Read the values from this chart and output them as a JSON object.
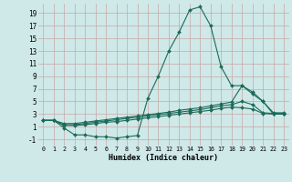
{
  "xlabel": "Humidex (Indice chaleur)",
  "background_color": "#cfe8e8",
  "grid_color": "#c8a8a8",
  "line_color": "#1a6b5a",
  "xlim": [
    -0.5,
    23.5
  ],
  "ylim": [
    -2.0,
    20.5
  ],
  "xticks": [
    0,
    1,
    2,
    3,
    4,
    5,
    6,
    7,
    8,
    9,
    10,
    11,
    12,
    13,
    14,
    15,
    16,
    17,
    18,
    19,
    20,
    21,
    22,
    23
  ],
  "yticks": [
    -1,
    1,
    3,
    5,
    7,
    9,
    11,
    13,
    15,
    17,
    19
  ],
  "series": [
    {
      "x": [
        0,
        1,
        2,
        3,
        4,
        5,
        6,
        7,
        8,
        9,
        10,
        11,
        12,
        13,
        14,
        15,
        16,
        17,
        18,
        19,
        20,
        21,
        22,
        23
      ],
      "y": [
        2,
        2,
        0.8,
        -0.3,
        -0.3,
        -0.6,
        -0.6,
        -0.8,
        -0.6,
        -0.4,
        5.5,
        9,
        13,
        16,
        19.5,
        20,
        17,
        10.5,
        7.5,
        7.5,
        6.5,
        5,
        3,
        3
      ]
    },
    {
      "x": [
        0,
        1,
        2,
        3,
        4,
        5,
        6,
        7,
        8,
        9,
        10,
        11,
        12,
        13,
        14,
        15,
        16,
        17,
        18,
        19,
        20,
        21,
        22,
        23
      ],
      "y": [
        2,
        2,
        1.5,
        1.5,
        1.7,
        1.9,
        2.1,
        2.3,
        2.5,
        2.7,
        2.9,
        3.1,
        3.3,
        3.6,
        3.8,
        4.0,
        4.3,
        4.6,
        4.9,
        7.5,
        6.2,
        5.0,
        3.2,
        3.2
      ]
    },
    {
      "x": [
        0,
        1,
        2,
        3,
        4,
        5,
        6,
        7,
        8,
        9,
        10,
        11,
        12,
        13,
        14,
        15,
        16,
        17,
        18,
        19,
        20,
        21,
        22,
        23
      ],
      "y": [
        2,
        2,
        1.3,
        1.3,
        1.5,
        1.7,
        1.9,
        2.1,
        2.3,
        2.5,
        2.7,
        2.9,
        3.1,
        3.3,
        3.5,
        3.7,
        4.0,
        4.3,
        4.5,
        5.0,
        4.5,
        3.2,
        3.1,
        3.1
      ]
    },
    {
      "x": [
        0,
        1,
        2,
        3,
        4,
        5,
        6,
        7,
        8,
        9,
        10,
        11,
        12,
        13,
        14,
        15,
        16,
        17,
        18,
        19,
        20,
        21,
        22,
        23
      ],
      "y": [
        2,
        2,
        1.2,
        1.2,
        1.3,
        1.5,
        1.7,
        1.8,
        2.0,
        2.2,
        2.4,
        2.6,
        2.8,
        3.0,
        3.2,
        3.4,
        3.6,
        3.9,
        4.1,
        4.0,
        3.8,
        3.1,
        3.0,
        3.0
      ]
    }
  ]
}
